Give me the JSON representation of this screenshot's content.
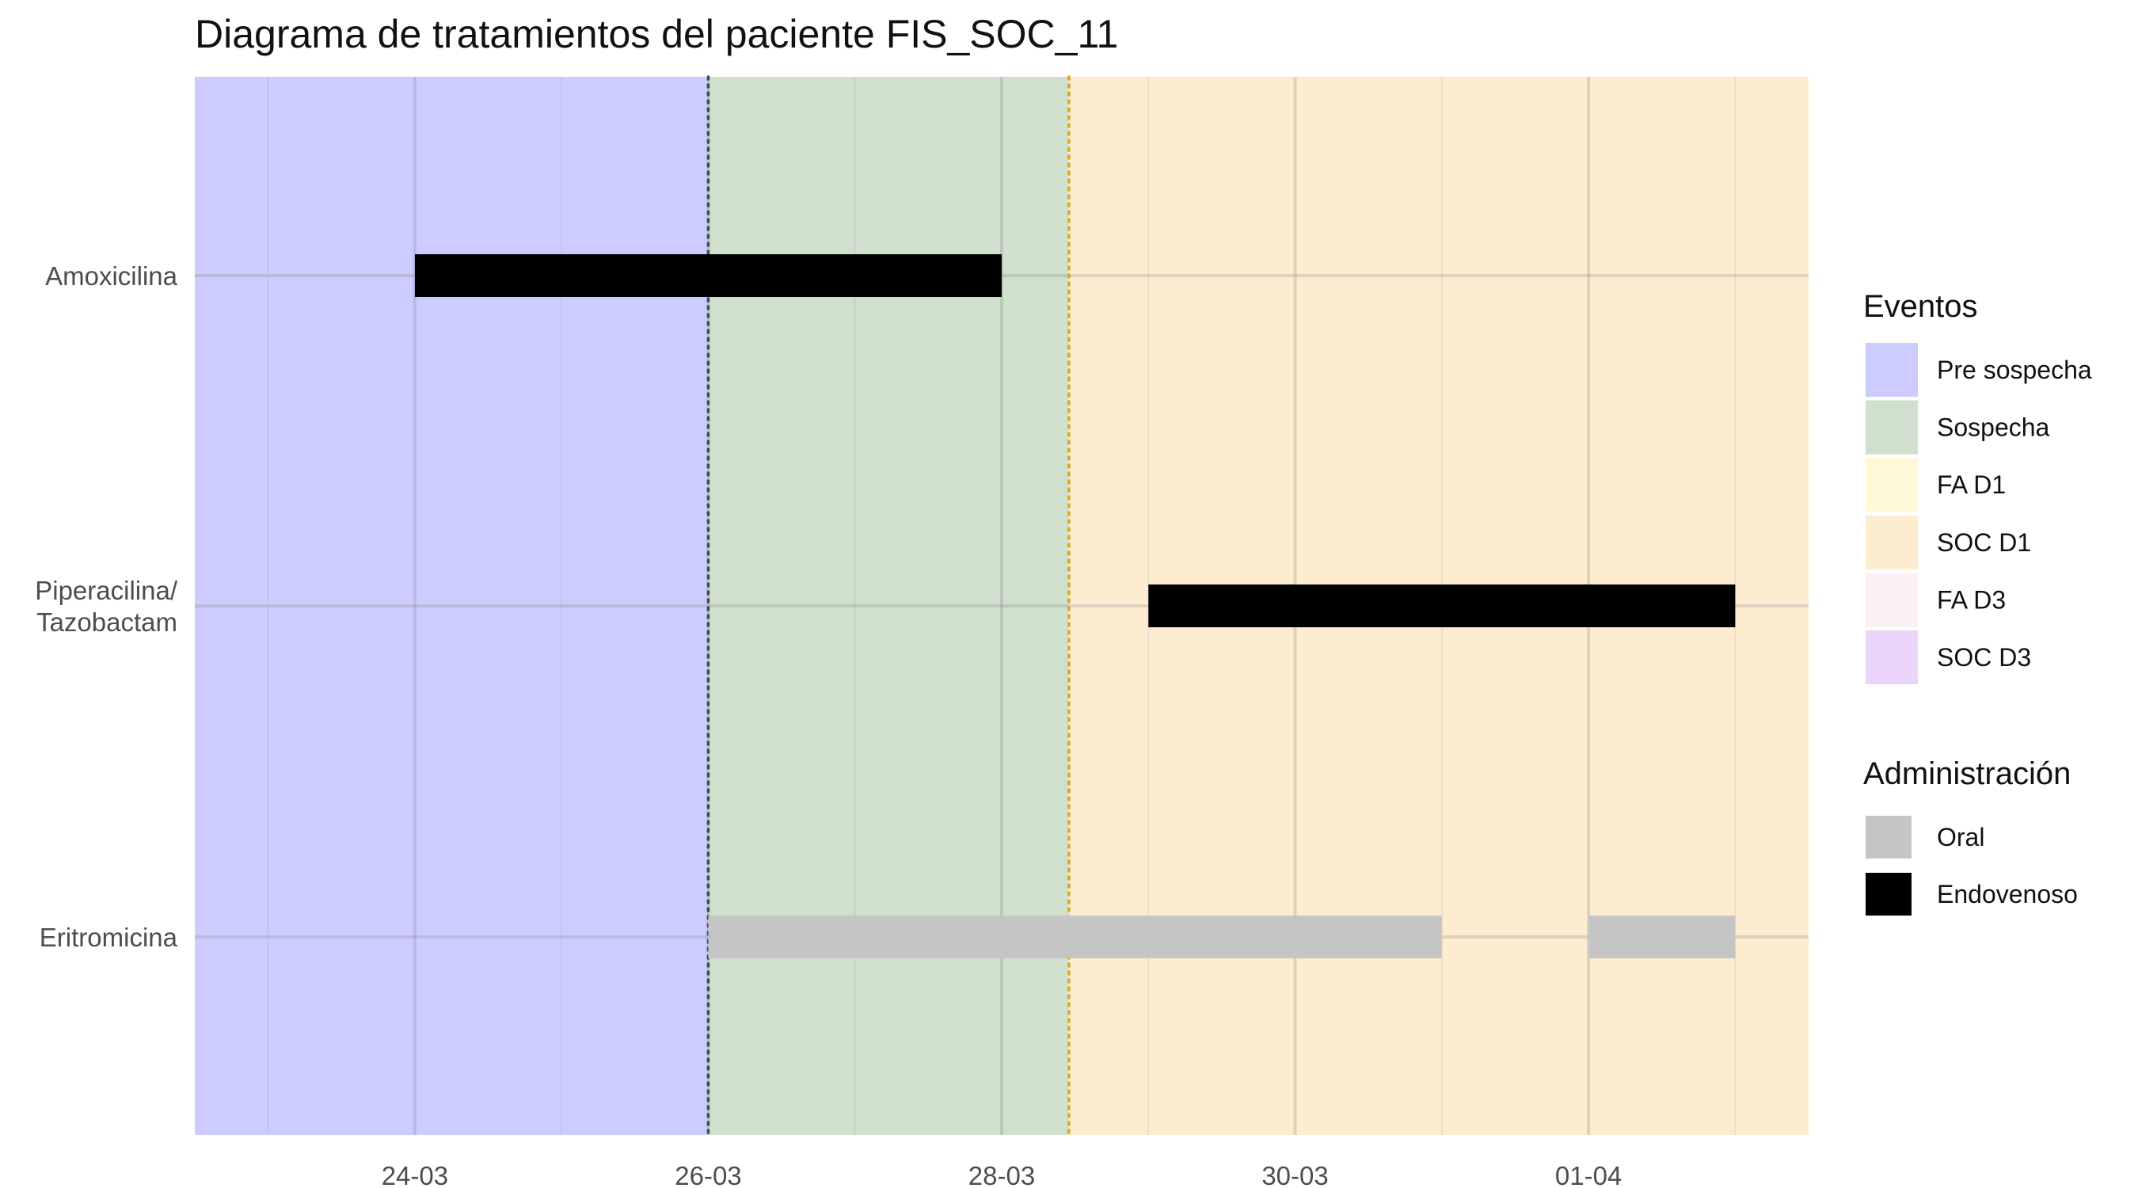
{
  "chart_data": {
    "type": "timeline",
    "title": "Diagrama de tratamientos del paciente FIS_SOC_11",
    "xlabel": "",
    "ylabel": "",
    "x_axis": {
      "type": "date",
      "range": [
        "2023-03-22T12:00",
        "2023-04-02T12:00"
      ],
      "ticks": [
        {
          "date": "2023-03-24",
          "label": "24-03"
        },
        {
          "date": "2023-03-26",
          "label": "26-03"
        },
        {
          "date": "2023-03-28",
          "label": "28-03"
        },
        {
          "date": "2023-03-30",
          "label": "30-03"
        },
        {
          "date": "2023-04-01",
          "label": "01-04"
        }
      ]
    },
    "categories": [
      {
        "key": "amoxicilina",
        "label_lines": [
          "Amoxicilina"
        ]
      },
      {
        "key": "piperacilina",
        "label_lines": [
          "Piperacilina/",
          "Tazobactam"
        ]
      },
      {
        "key": "eritromicina",
        "label_lines": [
          "Eritromicina"
        ]
      }
    ],
    "event_periods": [
      {
        "event": "Pre sospecha",
        "start": "2023-03-22T12:00",
        "end": "2023-03-26T00:00"
      },
      {
        "event": "Sospecha",
        "start": "2023-03-26T00:00",
        "end": "2023-03-28T11:00"
      },
      {
        "event": "SOC D1",
        "start": "2023-03-28T11:00",
        "end": "2023-04-02T12:00"
      }
    ],
    "event_lines": [
      {
        "date": "2023-03-26T00:00",
        "color": "#3d4a66",
        "style": "dotted"
      },
      {
        "date": "2023-03-28T11:00",
        "color": "#e3a21a",
        "style": "dotted"
      }
    ],
    "treatments": [
      {
        "drug": "amoxicilina",
        "route": "Endovenoso",
        "start": "2023-03-24T00:00",
        "end": "2023-03-28T00:00"
      },
      {
        "drug": "piperacilina",
        "route": "Endovenoso",
        "start": "2023-03-29T00:00",
        "end": "2023-04-02T00:00"
      },
      {
        "drug": "eritromicina",
        "route": "Oral",
        "start": "2023-03-26T00:00",
        "end": "2023-03-31T00:00"
      },
      {
        "drug": "eritromicina",
        "route": "Oral",
        "start": "2023-04-01T00:00",
        "end": "2023-04-02T00:00"
      }
    ],
    "legend_eventos": {
      "title": "Eventos",
      "items": [
        {
          "label": "Pre sospecha",
          "color": "#ccccff"
        },
        {
          "label": "Sospecha",
          "color": "#cfe0cc"
        },
        {
          "label": "FA D1",
          "color": "#fff8d6"
        },
        {
          "label": "SOC D1",
          "color": "#feecd0"
        },
        {
          "label": "FA D3",
          "color": "#fdf0f3"
        },
        {
          "label": "SOC D3",
          "color": "#ead4fa"
        }
      ]
    },
    "legend_administracion": {
      "title": "Administración",
      "items": [
        {
          "label": "Oral",
          "color": "#c5c5c5"
        },
        {
          "label": "Endovenoso",
          "color": "#000000"
        }
      ]
    },
    "legend_placement": "right",
    "grid": true
  }
}
